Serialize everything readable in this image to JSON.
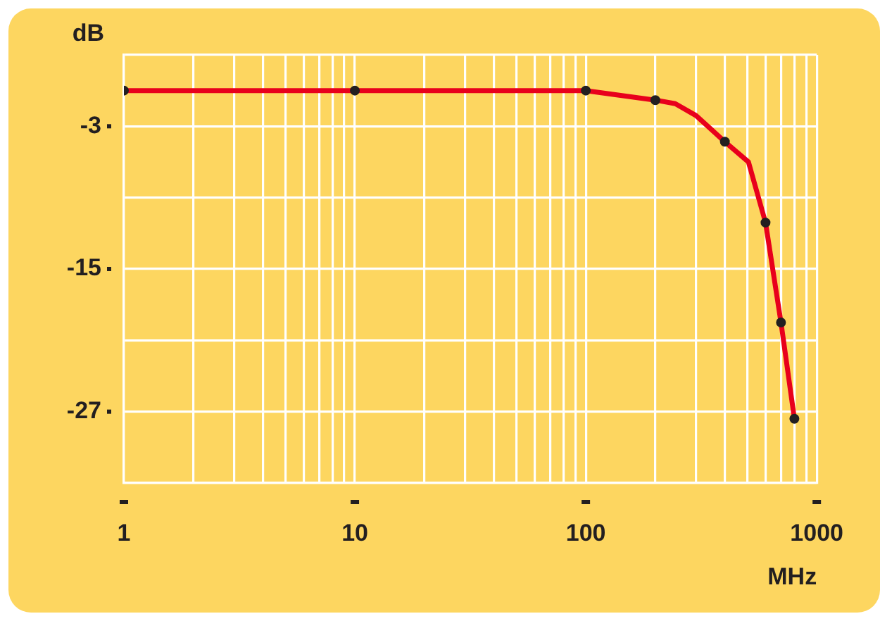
{
  "chart_data": {
    "type": "line",
    "ylabel": "dB",
    "xlabel": "MHz",
    "log": "x",
    "grid": true,
    "legend": false,
    "xlim": [
      1,
      1000
    ],
    "ylim": [
      -33,
      3
    ],
    "xticks": [
      1,
      {
        "value": 2,
        "label": null
      },
      {
        "value": 3,
        "label": null
      },
      {
        "value": 4,
        "label": null
      },
      {
        "value": 5,
        "label": null
      },
      {
        "value": 6,
        "label": null
      },
      {
        "value": 7,
        "label": null
      },
      {
        "value": 8,
        "label": null
      },
      {
        "value": 9,
        "label": null
      },
      10,
      {
        "value": 20,
        "label": null
      },
      {
        "value": 30,
        "label": null
      },
      {
        "value": 40,
        "label": null
      },
      {
        "value": 50,
        "label": null
      },
      {
        "value": 60,
        "label": null
      },
      {
        "value": 70,
        "label": null
      },
      {
        "value": 80,
        "label": null
      },
      {
        "value": 90,
        "label": null
      },
      100,
      {
        "value": 200,
        "label": null
      },
      {
        "value": 300,
        "label": null
      },
      {
        "value": 400,
        "label": null
      },
      {
        "value": 500,
        "label": null
      },
      {
        "value": 600,
        "label": null
      },
      {
        "value": 700,
        "label": null
      },
      {
        "value": 800,
        "label": null
      },
      {
        "value": 900,
        "label": null
      },
      1000
    ],
    "yticks": [
      {
        "value": 3,
        "label": null
      },
      -3,
      {
        "value": -9,
        "label": null
      },
      -15,
      {
        "value": -21,
        "label": null
      },
      -27,
      {
        "value": -33,
        "label": null
      }
    ],
    "series": [
      {
        "color": "#e8001c",
        "marker": "none",
        "line_style": "solid",
        "x": [
          1,
          10,
          100,
          200,
          244,
          300,
          400,
          506,
          600,
          700,
          800
        ],
        "values": [
          0,
          0,
          0,
          -0.8,
          -1.1,
          -2.1,
          -4.3,
          -6.0,
          -11.1,
          -19.5,
          -27.6
        ]
      },
      {
        "type": "scatter",
        "color": "#231f20",
        "marker": "circle",
        "x": [
          1,
          10,
          100,
          200,
          400,
          600,
          700,
          800
        ],
        "values": [
          0,
          0,
          0,
          -0.8,
          -4.3,
          -11.1,
          -19.5,
          -27.6
        ]
      }
    ]
  }
}
